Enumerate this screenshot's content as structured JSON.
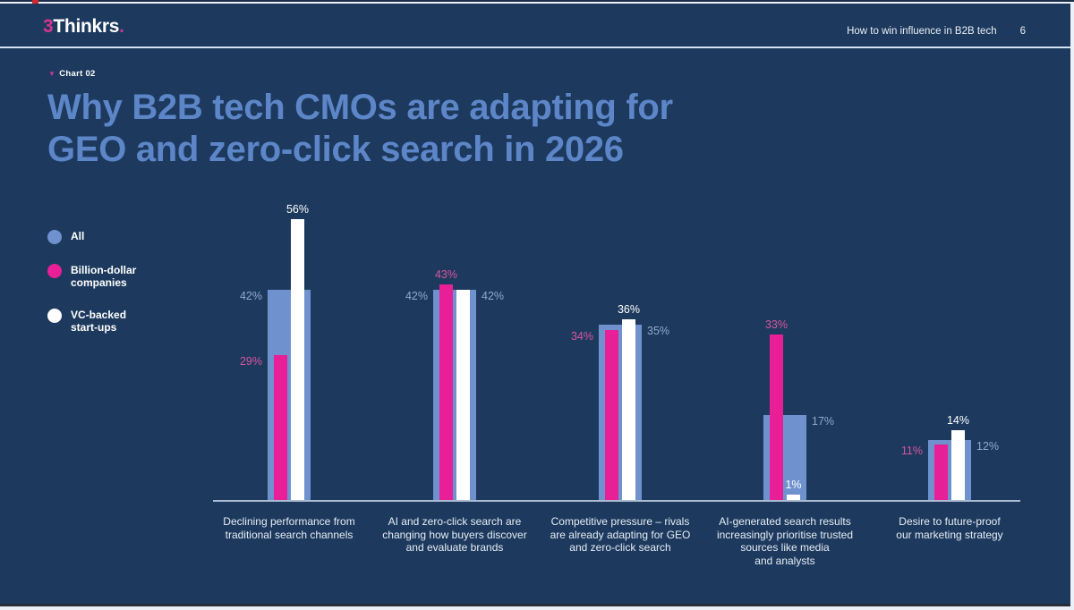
{
  "page": {
    "header": {
      "logo_prefix": "3",
      "logo_name": "Thinkrs",
      "logo_dot": ".",
      "doc_title": "How to win influence in B2B tech",
      "page_number": "6"
    },
    "kicker": {
      "marker": "▼",
      "label": "Chart 02"
    },
    "title": "Why B2B tech CMOs are adapting for\nGEO and zero-click search in 2026"
  },
  "colors": {
    "background": "#1d3a5e",
    "title_blue": "#5d86c8",
    "bar_all": "#6f92cf",
    "bar_billion": "#e81f96",
    "bar_vc": "#ffffff",
    "muted_label": "#93a9c9",
    "pink_label": "#d9549e",
    "accent_red": "#d8262d",
    "header_divider": "#d6e3f3"
  },
  "legend": {
    "items": [
      {
        "id": "all",
        "label": "All",
        "color": "#6f92cf"
      },
      {
        "id": "billion",
        "label": "Billion-dollar\ncompanies",
        "color": "#e81f96"
      },
      {
        "id": "vc",
        "label": "VC-backed\nstart-ups",
        "color": "#ffffff"
      }
    ]
  },
  "chart_data": {
    "type": "bar",
    "title": "Why B2B tech CMOs are adapting for GEO and zero-click search in 2026",
    "value_format": "percent",
    "ylim": [
      0,
      60
    ],
    "grid": false,
    "legend_position": "left",
    "bar_layout": "overlapped",
    "categories": [
      "Declining performance from\ntraditional search channels",
      "AI and zero-click search are\nchanging how buyers discover\nand evaluate brands",
      "Competitive pressure – rivals\nare already adapting for GEO\nand zero-click search",
      "AI-generated search results\nincreasingly prioritise trusted\nsources like media\nand analysts",
      "Desire to future-proof\nour marketing strategy"
    ],
    "series": [
      {
        "id": "all",
        "name": "All",
        "color": "#6f92cf",
        "values": [
          42,
          42,
          35,
          17,
          12
        ]
      },
      {
        "id": "billion",
        "name": "Billion-dollar companies",
        "color": "#e81f96",
        "values": [
          29,
          43,
          34,
          33,
          11
        ]
      },
      {
        "id": "vc",
        "name": "VC-backed start-ups",
        "color": "#ffffff",
        "values": [
          56,
          42,
          36,
          1,
          14
        ]
      }
    ],
    "groups": [
      {
        "bars": [
          {
            "series": "all",
            "value": 42,
            "label": "42%",
            "label_pos": "left",
            "label_color": "#93a9c9"
          },
          {
            "series": "billion",
            "value": 29,
            "label": "29%",
            "label_pos": "left",
            "label_color": "#d9549e"
          },
          {
            "series": "vc",
            "value": 56,
            "label": "56%",
            "label_pos": "top",
            "label_color": "#ffffff"
          }
        ]
      },
      {
        "bars": [
          {
            "series": "all",
            "value": 42,
            "label": "42%",
            "label_pos": "left",
            "label_color": "#93a9c9"
          },
          {
            "series": "billion",
            "value": 43,
            "label": "43%",
            "label_pos": "top",
            "label_color": "#d9549e"
          },
          {
            "series": "vc",
            "value": 42,
            "label": "42%",
            "label_pos": "right",
            "label_color": "#93a9c9"
          }
        ]
      },
      {
        "bars": [
          {
            "series": "billion",
            "value": 34,
            "label": "34%",
            "label_pos": "left",
            "label_color": "#d9549e"
          },
          {
            "series": "vc",
            "value": 36,
            "label": "36%",
            "label_pos": "top",
            "label_color": "#ffffff"
          },
          {
            "series": "all",
            "value": 35,
            "label": "35%",
            "label_pos": "right",
            "label_color": "#93a9c9"
          }
        ]
      },
      {
        "bars": [
          {
            "series": "billion",
            "value": 33,
            "label": "33%",
            "label_pos": "top",
            "label_color": "#d9549e"
          },
          {
            "series": "all",
            "value": 17,
            "label": "17%",
            "label_pos": "right",
            "label_color": "#93a9c9"
          },
          {
            "series": "vc",
            "value": 1,
            "label": "1%",
            "label_pos": "top",
            "label_color": "#ffffff"
          }
        ]
      },
      {
        "bars": [
          {
            "series": "billion",
            "value": 11,
            "label": "11%",
            "label_pos": "left",
            "label_color": "#d9549e"
          },
          {
            "series": "vc",
            "value": 14,
            "label": "14%",
            "label_pos": "top",
            "label_color": "#ffffff"
          },
          {
            "series": "all",
            "value": 12,
            "label": "12%",
            "label_pos": "right",
            "label_color": "#93a9c9"
          }
        ]
      }
    ]
  }
}
